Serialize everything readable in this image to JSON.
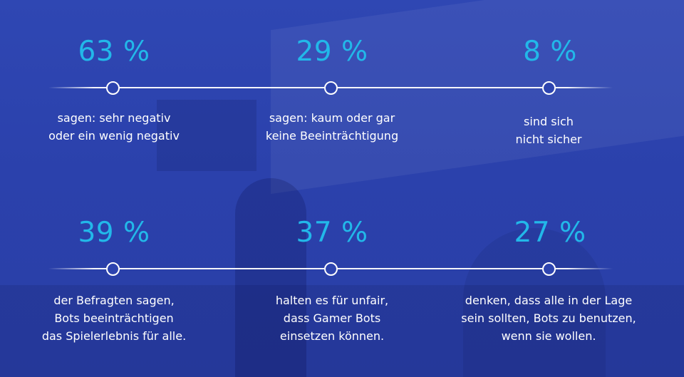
{
  "stats_row_1": [
    {
      "percent": "63 %",
      "lines": [
        "sagen: sehr negativ",
        "oder ein wenig negativ"
      ]
    },
    {
      "percent": "29 %",
      "lines": [
        "sagen: kaum oder gar",
        "keine Beeinträchtigung"
      ]
    },
    {
      "percent": "8 %",
      "lines": [
        "sind sich",
        "nicht sicher"
      ]
    }
  ],
  "stats_row_2": [
    {
      "percent": "39 %",
      "lines": [
        "der Befragten sagen,",
        "Bots beeinträchtigen",
        "das Spielerlebnis für alle."
      ]
    },
    {
      "percent": "37 %",
      "lines": [
        "halten es für unfair,",
        "dass Gamer Bots",
        "einsetzen können."
      ]
    },
    {
      "percent": "27 %",
      "lines": [
        "denken, dass alle in der Lage",
        "sein sollten, Bots zu benutzen,",
        "wenn sie wollen."
      ]
    }
  ],
  "colors": {
    "background": "#2d44af",
    "accent": "#22b8e9",
    "text": "#ffffff"
  }
}
